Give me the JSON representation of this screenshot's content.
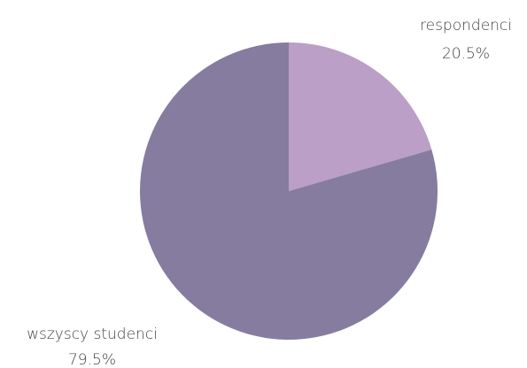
{
  "chart_data": {
    "type": "pie",
    "slices": [
      {
        "label": "respondenci",
        "value": 20.5,
        "value_label": "20.5%",
        "color": "#bb9fc6"
      },
      {
        "label": "wszyscy studenci",
        "value": 79.5,
        "value_label": "79.5%",
        "color": "#857ca0"
      }
    ]
  }
}
